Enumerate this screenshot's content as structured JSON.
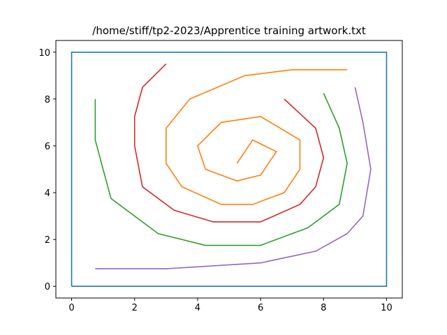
{
  "chart_data": {
    "type": "line",
    "title": "/home/stiff/tp2-2023/Apprentice training artwork.txt",
    "xlabel": "",
    "ylabel": "",
    "xlim": [
      -0.5,
      10.5
    ],
    "ylim": [
      -0.5,
      10.5
    ],
    "xticks": [
      0,
      2,
      4,
      6,
      8,
      10
    ],
    "yticks": [
      0,
      2,
      4,
      6,
      8,
      10
    ],
    "xtick_labels": [
      "0",
      "2",
      "4",
      "6",
      "8",
      "10"
    ],
    "ytick_labels": [
      "0",
      "2",
      "4",
      "6",
      "8",
      "10"
    ],
    "grid": false,
    "series": [
      {
        "color": "#1f77b4",
        "points": [
          [
            0,
            0
          ],
          [
            0,
            10
          ],
          [
            10,
            10
          ],
          [
            10,
            0
          ],
          [
            0,
            0
          ]
        ]
      },
      {
        "color": "#ff7f0e",
        "points": [
          [
            5.25,
            5.25
          ],
          [
            5.75,
            6.25
          ],
          [
            6.5,
            5.75
          ],
          [
            6,
            4.75
          ],
          [
            5.25,
            4.5
          ],
          [
            4.25,
            5
          ],
          [
            4,
            6
          ],
          [
            4.75,
            7
          ],
          [
            6,
            7.25
          ],
          [
            7.25,
            6.25
          ],
          [
            7.25,
            5
          ],
          [
            6.75,
            4
          ],
          [
            5.75,
            3.5
          ],
          [
            4.75,
            3.5
          ],
          [
            3.5,
            4.25
          ],
          [
            3,
            5.25
          ],
          [
            3,
            6.75
          ],
          [
            3.75,
            8
          ],
          [
            5.5,
            9
          ],
          [
            7,
            9.25
          ],
          [
            8.75,
            9.25
          ]
        ]
      },
      {
        "color": "#2ca02c",
        "points": [
          [
            8,
            8.25
          ],
          [
            8.5,
            6.75
          ],
          [
            8.75,
            5.25
          ],
          [
            8.5,
            3.5
          ],
          [
            7.5,
            2.5
          ],
          [
            6,
            1.75
          ],
          [
            4.25,
            1.75
          ],
          [
            2.75,
            2.25
          ],
          [
            1.25,
            3.75
          ],
          [
            0.75,
            6.25
          ],
          [
            0.75,
            8
          ]
        ]
      },
      {
        "color": "#d62728",
        "points": [
          [
            3,
            9.5
          ],
          [
            2.25,
            8.5
          ],
          [
            2,
            7.25
          ],
          [
            2,
            6
          ],
          [
            2.25,
            4.25
          ],
          [
            3.25,
            3.25
          ],
          [
            4.5,
            2.75
          ],
          [
            6,
            2.75
          ],
          [
            7.25,
            3.5
          ],
          [
            7.75,
            4.25
          ],
          [
            8,
            5.5
          ],
          [
            7.75,
            6.75
          ],
          [
            6.75,
            8
          ]
        ]
      },
      {
        "color": "#9467bd",
        "points": [
          [
            0.75,
            0.75
          ],
          [
            3,
            0.75
          ],
          [
            6,
            1
          ],
          [
            7.75,
            1.5
          ],
          [
            8.75,
            2.25
          ],
          [
            9.25,
            3
          ],
          [
            9.5,
            5
          ],
          [
            9.25,
            7
          ],
          [
            9,
            8.5
          ]
        ]
      }
    ]
  }
}
